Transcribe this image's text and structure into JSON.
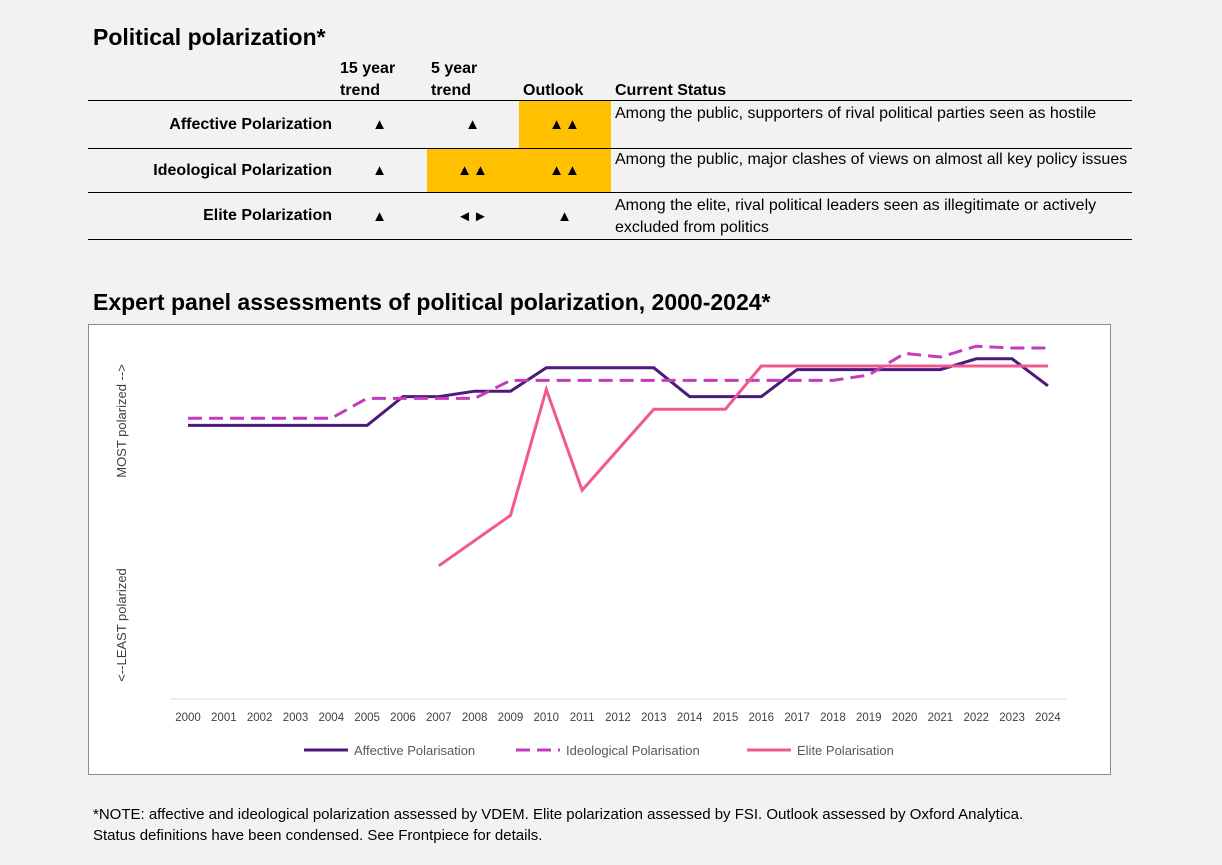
{
  "table": {
    "title": "Political polarization*",
    "headers": {
      "trend15": [
        "15 year",
        "trend"
      ],
      "trend5": [
        "5 year",
        "trend"
      ],
      "outlook": "Outlook",
      "status": "Current Status"
    },
    "rows": [
      {
        "label": "Affective Polarization",
        "trend15": "▲",
        "trend5": "▲",
        "outlook": "▲▲",
        "status": "Among the public, supporters of rival political parties seen as hostile"
      },
      {
        "label": "Ideological Polarization",
        "trend15": "▲",
        "trend5": "▲▲",
        "outlook": "▲▲",
        "status": "Among the public, major clashes of views on almost all key policy issues"
      },
      {
        "label": "Elite Polarization",
        "trend15": "▲",
        "trend5": "◄►",
        "outlook": "▲",
        "status": "Among the elite, rival political leaders seen as illegitimate or actively excluded from politics"
      }
    ],
    "highlight_color": "#ffc000"
  },
  "chart_title": "Expert panel assessments of political polarization, 2000-2024*",
  "chart_data": {
    "type": "line",
    "x": [
      2000,
      2001,
      2002,
      2003,
      2004,
      2005,
      2006,
      2007,
      2008,
      2009,
      2010,
      2011,
      2012,
      2013,
      2014,
      2015,
      2016,
      2017,
      2018,
      2019,
      2020,
      2021,
      2022,
      2023,
      2024
    ],
    "ylim": [
      0,
      100
    ],
    "ylabel_top": "MOST polarized -->",
    "ylabel_bottom": "<--LEAST polarized",
    "series": [
      {
        "name": "Affective Polarisation",
        "color": "#4b1a7a",
        "dash": "solid",
        "values": [
          76,
          76,
          76,
          76,
          76,
          76,
          84,
          84,
          85.5,
          85.5,
          92,
          92,
          92,
          92,
          84,
          84,
          84,
          91.5,
          91.5,
          91.5,
          91.5,
          91.5,
          94.5,
          94.5,
          87
        ]
      },
      {
        "name": "Ideological Polarisation",
        "color": "#c63bbd",
        "dash": "dashed",
        "values": [
          78,
          78,
          78,
          78,
          78,
          83.5,
          83.5,
          83.5,
          83.5,
          88.5,
          88.5,
          88.5,
          88.5,
          88.5,
          88.5,
          88.5,
          88.5,
          88.5,
          88.5,
          90,
          96,
          95,
          98,
          97.5,
          97.5
        ]
      },
      {
        "name": "Elite Polarisation",
        "color": "#f0598f",
        "dash": "solid",
        "values": [
          null,
          null,
          null,
          null,
          null,
          null,
          null,
          37,
          null,
          51,
          86,
          58,
          null,
          80.5,
          80.5,
          80.5,
          92.5,
          92.5,
          92.5,
          92.5,
          92.5,
          92.5,
          92.5,
          92.5,
          92.5
        ]
      }
    ],
    "legend": "bottom"
  },
  "footnote": [
    "*NOTE: affective and ideological polarization assessed by VDEM. Elite polarization assessed by FSI. Outlook assessed by Oxford Analytica.",
    "Status definitions have been condensed. See Frontpiece for details."
  ]
}
